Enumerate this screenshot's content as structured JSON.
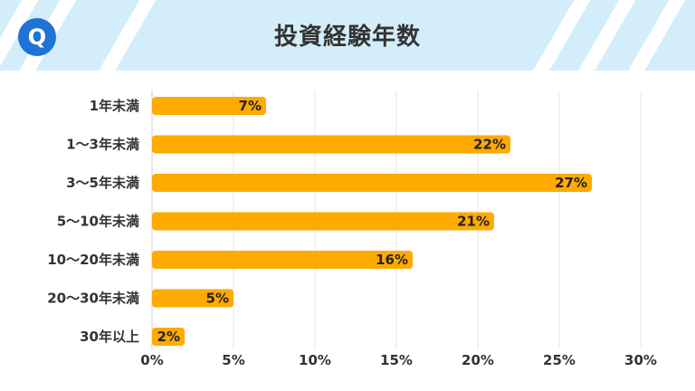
{
  "header": {
    "title": "投資経験年数",
    "logo_letter": "Q",
    "logo_icon": "q-logo-icon",
    "banner_color": "#d3eefa",
    "logo_color": "#1f73d6"
  },
  "chart_data": {
    "type": "bar",
    "orientation": "horizontal",
    "title": "投資経験年数",
    "categories": [
      "1年未満",
      "1～3年未満",
      "3～5年未満",
      "5～10年未満",
      "10～20年未満",
      "20～30年未満",
      "30年以上"
    ],
    "values": [
      7,
      22,
      27,
      21,
      16,
      5,
      2
    ],
    "value_labels": [
      "7%",
      "22%",
      "27%",
      "21%",
      "16%",
      "5%",
      "2%"
    ],
    "x_ticks": [
      "0%",
      "5%",
      "10%",
      "15%",
      "20%",
      "25%",
      "30%"
    ],
    "xlim": [
      0,
      30
    ],
    "bar_color": "#ffaa00",
    "grid": true,
    "legend": "none"
  }
}
